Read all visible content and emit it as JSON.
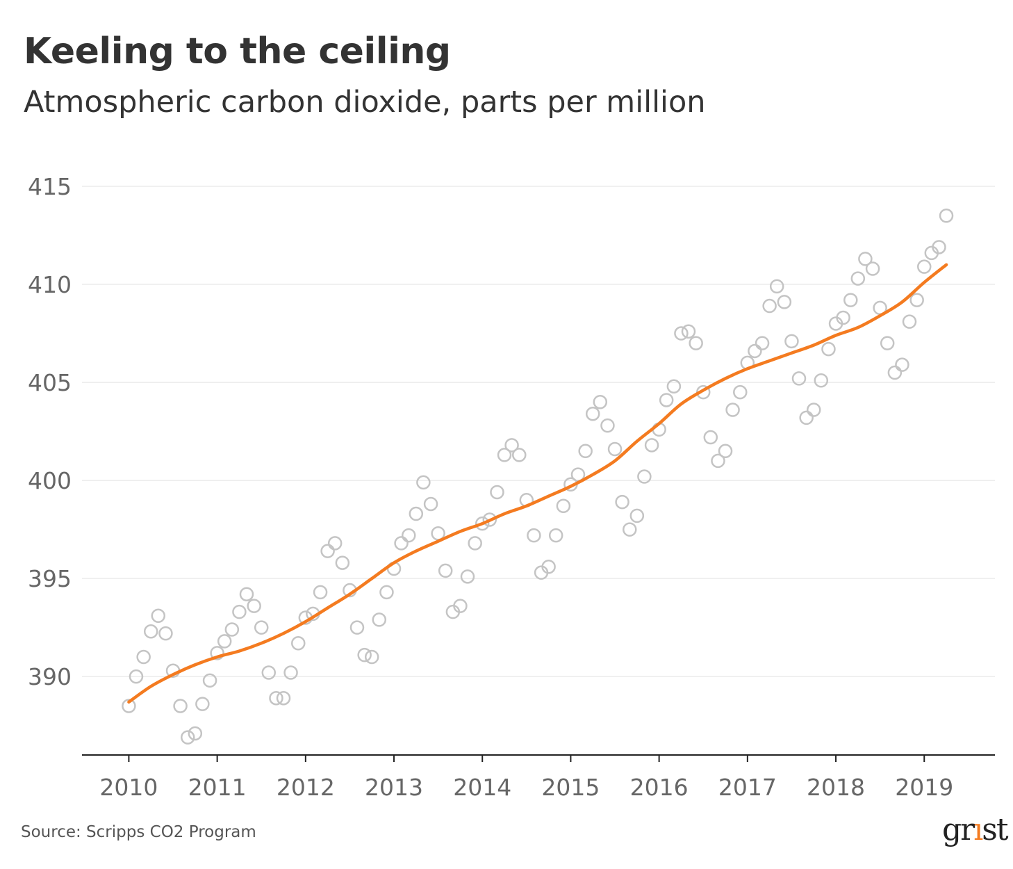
{
  "header": {
    "title": "Keeling to the ceiling",
    "subtitle": "Atmospheric carbon dioxide, parts per million"
  },
  "footer": {
    "source": "Source: Scripps CO2 Program",
    "logo_text": "grist"
  },
  "colors": {
    "trend": "#f47b20",
    "points": "#c4c4c4",
    "grid": "#ebebeb",
    "axis": "#222222"
  },
  "chart_data": {
    "type": "scatter",
    "title": "Keeling to the ceiling",
    "subtitle": "Atmospheric carbon dioxide, parts per million",
    "xlabel": "",
    "ylabel": "",
    "xlim": [
      2009.47,
      2019.8
    ],
    "ylim": [
      386,
      415
    ],
    "x_ticks": [
      "2010",
      "2011",
      "2012",
      "2013",
      "2014",
      "2015",
      "2016",
      "2017",
      "2018",
      "2019"
    ],
    "y_ticks": [
      "390",
      "395",
      "400",
      "405",
      "410",
      "415"
    ],
    "grid": true,
    "legend": "none",
    "series": [
      {
        "type": "scatter",
        "x": [
          2010.0,
          2010.083,
          2010.167,
          2010.25,
          2010.333,
          2010.417,
          2010.5,
          2010.583,
          2010.667,
          2010.75,
          2010.833,
          2010.917,
          2011.0,
          2011.083,
          2011.167,
          2011.25,
          2011.333,
          2011.417,
          2011.5,
          2011.583,
          2011.667,
          2011.75,
          2011.833,
          2011.917,
          2012.0,
          2012.083,
          2012.167,
          2012.25,
          2012.333,
          2012.417,
          2012.5,
          2012.583,
          2012.667,
          2012.75,
          2012.833,
          2012.917,
          2013.0,
          2013.083,
          2013.167,
          2013.25,
          2013.333,
          2013.417,
          2013.5,
          2013.583,
          2013.667,
          2013.75,
          2013.833,
          2013.917,
          2014.0,
          2014.083,
          2014.167,
          2014.25,
          2014.333,
          2014.417,
          2014.5,
          2014.583,
          2014.667,
          2014.75,
          2014.833,
          2014.917,
          2015.0,
          2015.083,
          2015.167,
          2015.25,
          2015.333,
          2015.417,
          2015.5,
          2015.583,
          2015.667,
          2015.75,
          2015.833,
          2015.917,
          2016.0,
          2016.083,
          2016.167,
          2016.25,
          2016.333,
          2016.417,
          2016.5,
          2016.583,
          2016.667,
          2016.75,
          2016.833,
          2016.917,
          2017.0,
          2017.083,
          2017.167,
          2017.25,
          2017.333,
          2017.417,
          2017.5,
          2017.583,
          2017.667,
          2017.75,
          2017.833,
          2017.917,
          2018.0,
          2018.083,
          2018.167,
          2018.25,
          2018.333,
          2018.417,
          2018.5,
          2018.583,
          2018.667,
          2018.75,
          2018.833,
          2018.917,
          2019.0,
          2019.083,
          2019.167,
          2019.25
        ],
        "y": [
          388.5,
          390.0,
          391.0,
          392.3,
          393.1,
          392.2,
          390.3,
          388.5,
          386.9,
          387.1,
          388.6,
          389.8,
          391.2,
          391.8,
          392.4,
          393.3,
          394.2,
          393.6,
          392.5,
          390.2,
          388.9,
          388.9,
          390.2,
          391.7,
          393.0,
          393.2,
          394.3,
          396.4,
          396.8,
          395.8,
          394.4,
          392.5,
          391.1,
          391.0,
          392.9,
          394.3,
          395.5,
          396.8,
          397.2,
          398.3,
          399.9,
          398.8,
          397.3,
          395.4,
          393.3,
          393.6,
          395.1,
          396.8,
          397.8,
          398.0,
          399.4,
          401.3,
          401.8,
          401.3,
          399.0,
          397.2,
          395.3,
          395.6,
          397.2,
          398.7,
          399.8,
          400.3,
          401.5,
          403.4,
          404.0,
          402.8,
          401.6,
          398.9,
          397.5,
          398.2,
          400.2,
          401.8,
          402.6,
          404.1,
          404.8,
          407.5,
          407.6,
          407.0,
          404.5,
          402.2,
          401.0,
          401.5,
          403.6,
          404.5,
          406.0,
          406.6,
          407.0,
          408.9,
          409.9,
          409.1,
          407.1,
          405.2,
          403.2,
          403.6,
          405.1,
          406.7,
          408.0,
          408.3,
          409.2,
          410.3,
          411.3,
          410.8,
          408.8,
          407.0,
          405.5,
          405.9,
          408.1,
          409.2,
          410.9,
          411.6,
          411.9,
          413.5
        ]
      },
      {
        "type": "line",
        "x": [
          2010.0,
          2010.25,
          2010.5,
          2010.75,
          2011.0,
          2011.25,
          2011.5,
          2011.75,
          2012.0,
          2012.25,
          2012.5,
          2012.75,
          2013.0,
          2013.25,
          2013.5,
          2013.75,
          2014.0,
          2014.25,
          2014.5,
          2014.75,
          2015.0,
          2015.25,
          2015.5,
          2015.75,
          2016.0,
          2016.25,
          2016.5,
          2016.75,
          2017.0,
          2017.25,
          2017.5,
          2017.75,
          2018.0,
          2018.25,
          2018.5,
          2018.75,
          2019.0,
          2019.25
        ],
        "y": [
          388.7,
          389.5,
          390.1,
          390.6,
          391.0,
          391.3,
          391.7,
          392.2,
          392.8,
          393.5,
          394.2,
          395.0,
          395.8,
          396.4,
          396.9,
          397.4,
          397.8,
          398.3,
          398.7,
          399.2,
          399.7,
          400.3,
          401.0,
          402.0,
          402.9,
          403.9,
          404.6,
          405.2,
          405.7,
          406.1,
          406.5,
          406.9,
          407.4,
          407.8,
          408.4,
          409.1,
          410.1,
          411.0
        ]
      }
    ]
  }
}
